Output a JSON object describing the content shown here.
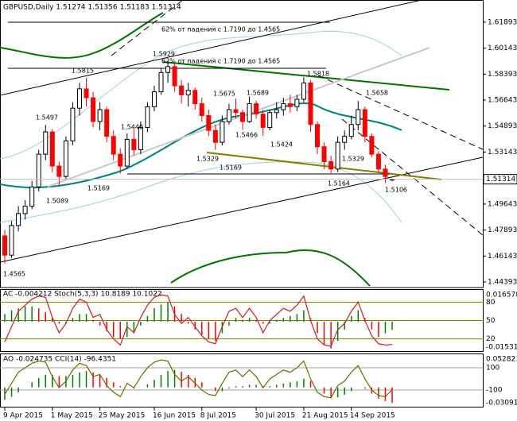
{
  "chart_data": [
    {
      "type": "candlestick",
      "title": "GBPUSD,Daily  1.51274 1.51356 1.51183 1.51314",
      "categories": [
        "9 Apr 2015",
        null,
        null,
        null,
        null,
        null,
        null,
        "1 May 2015",
        null,
        null,
        null,
        null,
        null,
        null,
        "25 May 2015",
        null,
        null,
        null,
        null,
        null,
        null,
        null,
        "16 Jun 2015",
        null,
        null,
        null,
        null,
        null,
        null,
        "8 Jul 2015",
        null,
        null,
        null,
        null,
        null,
        null,
        null,
        "30 Jul 2015",
        null,
        null,
        null,
        null,
        null,
        null,
        "21 Aug 2015",
        null,
        null,
        null,
        null,
        null,
        null,
        "14 Sep 2015",
        null,
        null,
        null,
        null,
        null,
        null
      ],
      "open": [
        1.475,
        1.462,
        1.482,
        1.49,
        1.495,
        1.508,
        1.53,
        1.545,
        1.522,
        1.515,
        1.539,
        1.561,
        1.574,
        1.568,
        1.552,
        1.56,
        1.542,
        1.53,
        1.522,
        1.54,
        1.533,
        1.548,
        1.562,
        1.572,
        1.585,
        1.589,
        1.576,
        1.57,
        1.573,
        1.564,
        1.556,
        1.546,
        1.538,
        1.552,
        1.56,
        1.558,
        1.552,
        1.564,
        1.557,
        1.548,
        1.558,
        1.56,
        1.564,
        1.562,
        1.567,
        1.578,
        1.55,
        1.535,
        1.525,
        1.52,
        1.538,
        1.542,
        1.55,
        1.56,
        1.542,
        1.53,
        1.52,
        1.51274
      ],
      "high": [
        1.479,
        1.485,
        1.495,
        1.499,
        1.512,
        1.533,
        1.5497,
        1.547,
        1.525,
        1.542,
        1.565,
        1.578,
        1.5815,
        1.572,
        1.565,
        1.562,
        1.546,
        1.534,
        1.544,
        1.547,
        1.552,
        1.565,
        1.576,
        1.588,
        1.5929,
        1.591,
        1.58,
        1.578,
        1.575,
        1.568,
        1.56,
        1.55,
        1.556,
        1.564,
        1.5675,
        1.56,
        1.5689,
        1.566,
        1.56,
        1.56,
        1.565,
        1.568,
        1.57,
        1.57,
        1.5818,
        1.58,
        1.552,
        1.538,
        1.529,
        1.542,
        1.546,
        1.556,
        1.5658,
        1.562,
        1.544,
        1.532,
        1.523,
        1.51356
      ],
      "low": [
        1.4565,
        1.46,
        1.478,
        1.486,
        1.493,
        1.505,
        1.526,
        1.518,
        1.5089,
        1.513,
        1.536,
        1.556,
        1.562,
        1.548,
        1.546,
        1.538,
        1.526,
        1.5169,
        1.52,
        1.529,
        1.53,
        1.545,
        1.559,
        1.57,
        1.578,
        1.572,
        1.564,
        1.562,
        1.56,
        1.552,
        1.542,
        1.5329,
        1.536,
        1.55,
        1.554,
        1.5466,
        1.551,
        1.554,
        1.5424,
        1.546,
        1.554,
        1.556,
        1.558,
        1.559,
        1.565,
        1.545,
        1.53,
        1.52,
        1.5164,
        1.518,
        1.5329,
        1.54,
        1.546,
        1.538,
        1.528,
        1.518,
        1.5106,
        1.51183
      ],
      "close": [
        1.462,
        1.482,
        1.49,
        1.495,
        1.508,
        1.53,
        1.545,
        1.522,
        1.515,
        1.539,
        1.561,
        1.574,
        1.568,
        1.552,
        1.56,
        1.542,
        1.53,
        1.522,
        1.54,
        1.533,
        1.548,
        1.562,
        1.572,
        1.585,
        1.589,
        1.576,
        1.57,
        1.573,
        1.564,
        1.556,
        1.546,
        1.538,
        1.552,
        1.56,
        1.558,
        1.552,
        1.564,
        1.557,
        1.548,
        1.558,
        1.56,
        1.564,
        1.562,
        1.567,
        1.578,
        1.55,
        1.535,
        1.525,
        1.52,
        1.538,
        1.542,
        1.55,
        1.56,
        1.542,
        1.53,
        1.52,
        1.515,
        1.51314
      ],
      "colors": [
        "#000000",
        "#ff0000"
      ],
      "ylim": [
        1.4402,
        1.6333
      ],
      "yticks": [
        1.61893,
        1.60143,
        1.58393,
        1.56643,
        1.54893,
        1.53143,
        1.49643,
        1.47893,
        1.46143,
        1.44393
      ],
      "current_price": 1.51314,
      "annotations": [
        "62% от падения с 1.7190 до 1.4565",
        "62% от падения с 1.7190 до 1.4565",
        "1.5815",
        "1.5929",
        "1.5497",
        "1.5440",
        "1.5089",
        "1.5169",
        "1.5169",
        "1.5329",
        "1.5675",
        "1.5689",
        "1.5466",
        "1.5424",
        "1.5818",
        "1.5164",
        "1.5658",
        "1.5329",
        "1.5106",
        "1.4565"
      ]
    },
    {
      "type": "bar",
      "title": "AC -0.004212  Stoch(5,3,3) 10.8189 10.1022",
      "series": [
        {
          "type": "bar",
          "colors": [
            "#008000",
            "#ff0000"
          ],
          "values": [
            0.004,
            0.006,
            0.007,
            0.008,
            0.008,
            0.007,
            0.005,
            0.002,
            -0.001,
            -0.001,
            0.002,
            0.004,
            0.004,
            0.001,
            -0.002,
            -0.005,
            -0.008,
            -0.009,
            -0.008,
            -0.006,
            -0.002,
            0.003,
            0.007,
            0.009,
            0.01,
            0.008,
            0.004,
            -0.001,
            -0.004,
            -0.007,
            -0.009,
            -0.01,
            -0.006,
            -0.002,
            0.002,
            0.001,
            0.002,
            0.001,
            -0.001,
            -0.001,
            0.001,
            0.002,
            0.003,
            0.004,
            0.006,
            0.002,
            -0.006,
            -0.012,
            -0.014,
            -0.01,
            -0.004,
            0.003,
            0.006,
            0.002,
            -0.004,
            -0.008,
            -0.006,
            -0.0042
          ]
        },
        {
          "type": "line",
          "axis": "y2",
          "color": "#cc2020",
          "values": [
            15,
            40,
            65,
            75,
            85,
            90,
            88,
            55,
            30,
            45,
            70,
            85,
            80,
            55,
            60,
            35,
            20,
            10,
            40,
            30,
            55,
            75,
            88,
            92,
            90,
            60,
            45,
            55,
            40,
            25,
            15,
            12,
            40,
            65,
            70,
            55,
            70,
            55,
            30,
            50,
            60,
            70,
            65,
            75,
            90,
            50,
            20,
            10,
            8,
            35,
            45,
            65,
            80,
            50,
            25,
            12,
            10,
            10.8189
          ]
        }
      ],
      "ylim": [
        -0.01531,
        0.016578
      ],
      "yticks": [
        0.016578,
        -0.01531
      ],
      "y2lim": [
        0,
        100
      ],
      "y2ticks": [
        20,
        50,
        80
      ],
      "level_color": "#808000"
    },
    {
      "type": "bar",
      "title": "AO -0.024735  CCI(14) -96.4351",
      "series": [
        {
          "type": "bar",
          "colors": [
            "#008000",
            "#ff0000"
          ],
          "values": [
            -0.02,
            -0.015,
            -0.008,
            0,
            0.008,
            0.015,
            0.02,
            0.02,
            0.018,
            0.018,
            0.02,
            0.024,
            0.026,
            0.024,
            0.02,
            0.015,
            0.008,
            0.002,
            0,
            -0.002,
            0,
            0.005,
            0.012,
            0.02,
            0.026,
            0.028,
            0.025,
            0.02,
            0.015,
            0.008,
            0,
            -0.006,
            -0.006,
            -0.002,
            0.002,
            0.002,
            0.004,
            0.004,
            0.002,
            0.002,
            0.004,
            0.006,
            0.008,
            0.01,
            0.014,
            0.01,
            0,
            -0.01,
            -0.016,
            -0.016,
            -0.012,
            -0.006,
            0,
            -0.002,
            -0.01,
            -0.018,
            -0.022,
            -0.024735
          ]
        },
        {
          "type": "line",
          "axis": "y2",
          "color": "#6b6b00",
          "values": [
            -140,
            -40,
            60,
            100,
            140,
            160,
            150,
            20,
            -80,
            -20,
            80,
            140,
            120,
            20,
            40,
            -60,
            -120,
            -160,
            -40,
            -80,
            20,
            100,
            150,
            170,
            160,
            40,
            -20,
            20,
            -40,
            -100,
            -140,
            -150,
            -40,
            60,
            80,
            20,
            80,
            20,
            -80,
            0,
            40,
            80,
            60,
            100,
            160,
            0,
            -120,
            -160,
            -170,
            -60,
            -20,
            60,
            120,
            0,
            -100,
            -150,
            -160,
            -96.4351
          ]
        }
      ],
      "ylim": [
        -0.030918,
        0.052821
      ],
      "yticks": [
        0.052821,
        -0.030918
      ],
      "y2lim": [
        -250,
        221
      ],
      "y2ticks": [
        100,
        -100
      ],
      "level_color": "#a0a0a0"
    }
  ]
}
